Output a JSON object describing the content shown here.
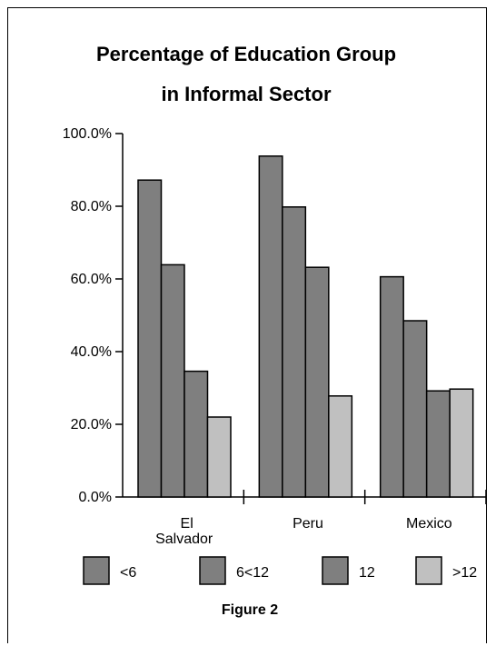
{
  "chart_data": {
    "type": "bar",
    "title_line1": "Percentage of Education Group",
    "title_line2": "in Informal Sector",
    "categories": [
      {
        "line1": "El",
        "line2": "Salvador"
      },
      {
        "line1": "Peru",
        "line2": ""
      },
      {
        "line1": "Mexico",
        "line2": ""
      }
    ],
    "series": [
      {
        "name": "<6",
        "color": "#7f7f7f",
        "values": [
          87.2,
          93.8,
          60.6
        ]
      },
      {
        "name": "6<12",
        "color": "#7f7f7f",
        "values": [
          63.9,
          79.8,
          48.5
        ]
      },
      {
        "name": "12",
        "color": "#7f7f7f",
        "values": [
          34.6,
          63.2,
          29.2
        ]
      },
      {
        "name": ">12",
        "color": "#c0c0c0",
        "values": [
          22.0,
          27.8,
          29.7
        ]
      }
    ],
    "y_ticks": [
      "0.0%",
      "20.0%",
      "40.0%",
      "60.0%",
      "80.0%",
      "100.0%"
    ],
    "ylim": [
      0,
      100
    ],
    "grid": false,
    "legend_position": "bottom"
  },
  "caption": "Figure 2"
}
